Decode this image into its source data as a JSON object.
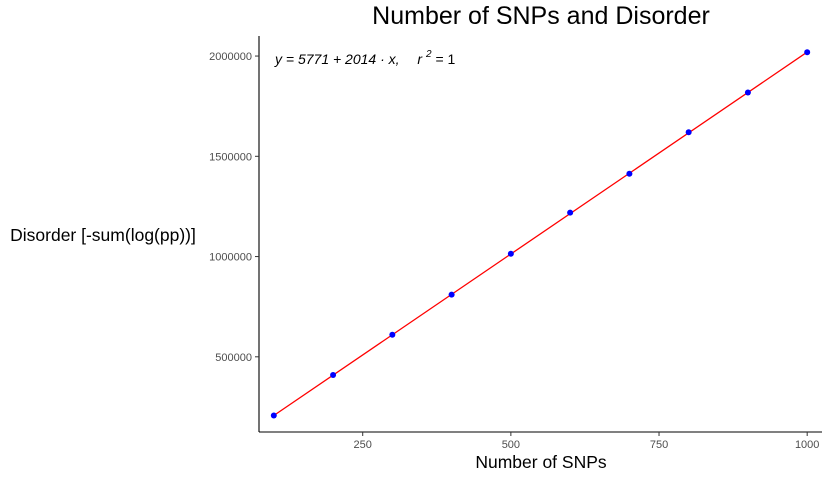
{
  "chart_data": {
    "type": "scatter",
    "title": "Number of SNPs and Disorder",
    "xlabel": "Number of SNPs",
    "ylabel": "Disorder [-sum(log(pp))]",
    "xlim": [
      75,
      1025
    ],
    "ylim": [
      125000,
      2100000
    ],
    "xticks": [
      250,
      500,
      750,
      1000
    ],
    "yticks": [
      500000,
      1000000,
      1500000,
      2000000
    ],
    "x_tick_labels": [
      "250",
      "500",
      "750",
      "1000"
    ],
    "y_tick_labels": [
      "500000",
      "1000000",
      "1500000",
      "2000000"
    ],
    "grid": false,
    "series": [
      {
        "x": [
          100,
          200,
          300,
          400,
          500,
          600,
          700,
          800,
          900,
          1000
        ],
        "y": [
          207000,
          409000,
          610000,
          810000,
          1014000,
          1219000,
          1413000,
          1620000,
          1818000,
          2019000
        ],
        "color": "#0000ff"
      }
    ],
    "fit_line": {
      "intercept": 5771,
      "slope": 2014,
      "x_range": [
        100,
        1000
      ],
      "color": "#ff0000"
    },
    "annotation": {
      "equation": "y = 5771 + 2014 · x,",
      "r2_label": "r",
      "r2_exp": "2",
      "r2_value": " = 1"
    }
  }
}
